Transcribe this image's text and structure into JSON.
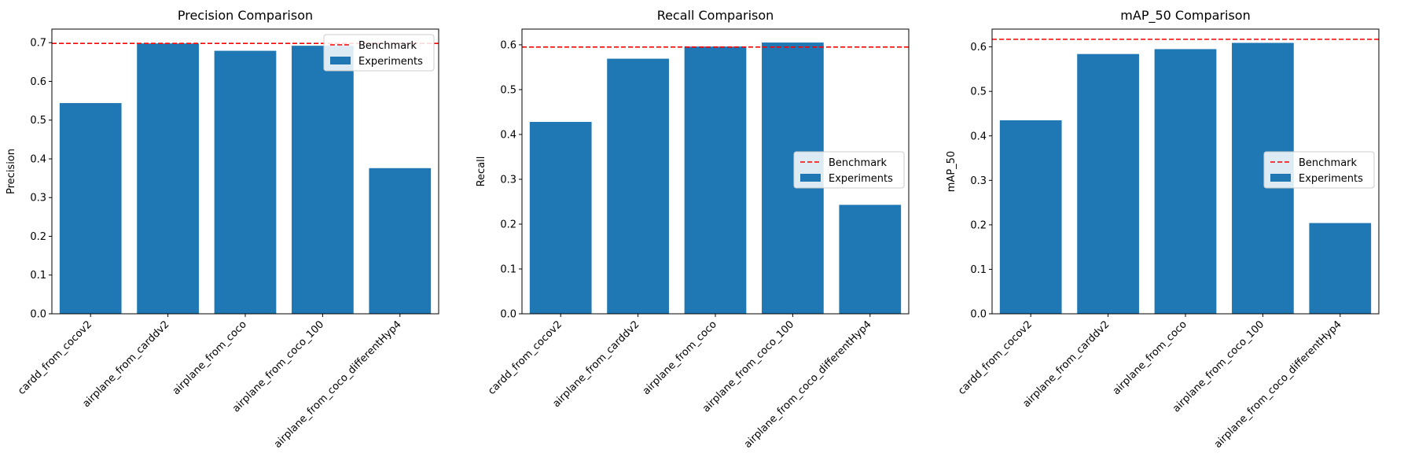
{
  "chart_data": [
    {
      "type": "bar",
      "title": "Precision Comparison",
      "xlabel": "",
      "ylabel": "Precision",
      "ylim": [
        0,
        0.735
      ],
      "yticks": [
        "0.0",
        "0.1",
        "0.2",
        "0.3",
        "0.4",
        "0.5",
        "0.6",
        "0.7"
      ],
      "categories": [
        "cardd_from_cocov2",
        "airplane_from_carddv2",
        "airplane_from_coco",
        "airplane_from_coco_100",
        "airplane_from_coco_differentHyp4"
      ],
      "series": [
        {
          "name": "Experiments",
          "values": [
            0.544,
            0.698,
            0.679,
            0.692,
            0.376
          ]
        }
      ],
      "benchmark": {
        "name": "Benchmark",
        "value": 0.698
      },
      "legend_position": "upper right",
      "grid": false
    },
    {
      "type": "bar",
      "title": "Recall Comparison",
      "xlabel": "",
      "ylabel": "Recall",
      "ylim": [
        0,
        0.635
      ],
      "yticks": [
        "0.0",
        "0.1",
        "0.2",
        "0.3",
        "0.4",
        "0.5",
        "0.6"
      ],
      "categories": [
        "cardd_from_cocov2",
        "airplane_from_carddv2",
        "airplane_from_coco",
        "airplane_from_coco_100",
        "airplane_from_coco_differentHyp4"
      ],
      "series": [
        {
          "name": "Experiments",
          "values": [
            0.428,
            0.569,
            0.596,
            0.605,
            0.243
          ]
        }
      ],
      "benchmark": {
        "name": "Benchmark",
        "value": 0.595
      },
      "legend_position": "center right",
      "grid": false
    },
    {
      "type": "bar",
      "title": "mAP_50 Comparison",
      "xlabel": "",
      "ylabel": "mAP_50",
      "ylim": [
        0,
        0.64
      ],
      "yticks": [
        "0.0",
        "0.1",
        "0.2",
        "0.3",
        "0.4",
        "0.5",
        "0.6"
      ],
      "categories": [
        "cardd_from_cocov2",
        "airplane_from_carddv2",
        "airplane_from_coco",
        "airplane_from_coco_100",
        "airplane_from_coco_differentHyp4"
      ],
      "series": [
        {
          "name": "Experiments",
          "values": [
            0.435,
            0.584,
            0.595,
            0.609,
            0.204
          ]
        }
      ],
      "benchmark": {
        "name": "Benchmark",
        "value": 0.617
      },
      "legend_position": "center right",
      "grid": false
    }
  ],
  "colors": {
    "bar": "#1f77b4",
    "benchmark": "#ff0000",
    "axis": "#000000"
  }
}
